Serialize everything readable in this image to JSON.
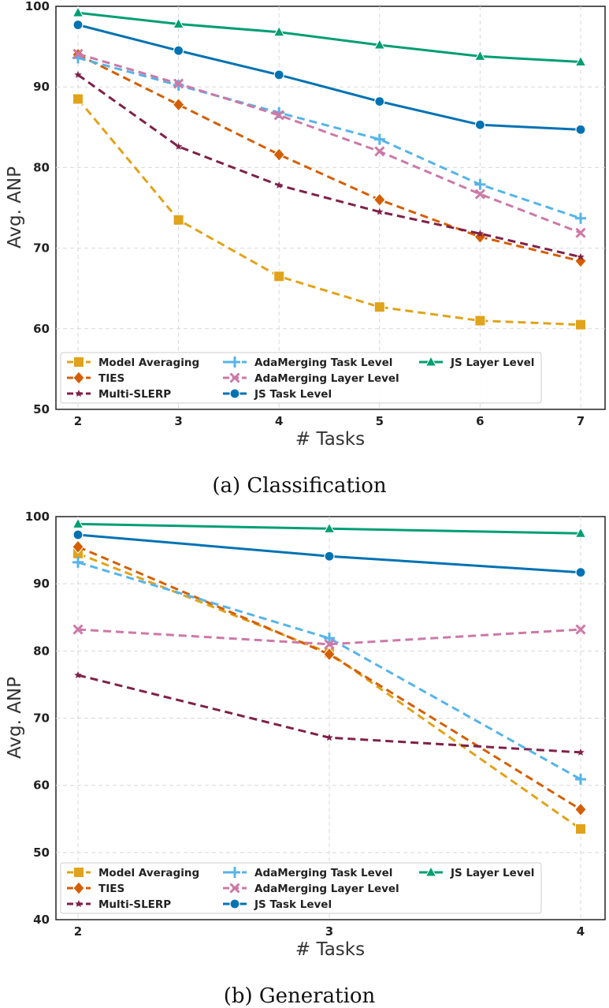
{
  "colors": {
    "model_averaging": "#e0a31a",
    "ties": "#d55e00",
    "multi_slerp": "#7f2148",
    "adamerging_task": "#56b4e9",
    "adamerging_layer": "#cc79a7",
    "js_task": "#0072b2",
    "js_layer": "#009e73"
  },
  "chart_data": [
    {
      "type": "line",
      "caption": "(a) Classification",
      "xlabel": "# Tasks",
      "ylabel": "Avg. ANP",
      "x": [
        2,
        3,
        4,
        5,
        6,
        7
      ],
      "x_tick_labels": [
        "2",
        "3",
        "4",
        "5",
        "6",
        "7"
      ],
      "ylim": [
        50,
        100
      ],
      "y_ticks": [
        50,
        60,
        70,
        80,
        90,
        100
      ],
      "y_tick_labels": [
        "50",
        "60",
        "70",
        "80",
        "90",
        "100"
      ],
      "grid": true,
      "legend_position": "lower-left",
      "series": [
        {
          "key": "model_averaging",
          "name": "Model Averaging",
          "marker": "square",
          "dashed": true,
          "values": [
            88.5,
            73.5,
            66.5,
            62.7,
            61.0,
            60.5
          ]
        },
        {
          "key": "ties",
          "name": "TIES",
          "marker": "diamond",
          "dashed": true,
          "values": [
            94.0,
            87.8,
            81.6,
            76.0,
            71.4,
            68.4
          ]
        },
        {
          "key": "multi_slerp",
          "name": "Multi-SLERP",
          "marker": "star",
          "dashed": true,
          "values": [
            91.5,
            82.6,
            77.8,
            74.5,
            71.8,
            68.9
          ]
        },
        {
          "key": "adamerging_task",
          "name": "AdaMerging Task Level",
          "marker": "plus",
          "dashed": true,
          "values": [
            93.6,
            90.2,
            86.8,
            83.5,
            77.9,
            73.7
          ]
        },
        {
          "key": "adamerging_layer",
          "name": "AdaMerging Layer Level",
          "marker": "x",
          "dashed": true,
          "values": [
            94.1,
            90.4,
            86.5,
            82.0,
            76.7,
            71.9
          ]
        },
        {
          "key": "js_task",
          "name": "JS Task Level",
          "marker": "circle",
          "dashed": false,
          "values": [
            97.7,
            94.5,
            91.5,
            88.2,
            85.3,
            84.7
          ]
        },
        {
          "key": "js_layer",
          "name": "JS Layer Level",
          "marker": "triangle",
          "dashed": false,
          "values": [
            99.2,
            97.8,
            96.8,
            95.2,
            93.8,
            93.1
          ]
        }
      ]
    },
    {
      "type": "line",
      "caption": "(b) Generation",
      "xlabel": "# Tasks",
      "ylabel": "Avg. ANP",
      "x": [
        2,
        3,
        4
      ],
      "x_tick_labels": [
        "2",
        "3",
        "4"
      ],
      "ylim": [
        40,
        100
      ],
      "y_ticks": [
        40,
        50,
        60,
        70,
        80,
        90,
        100
      ],
      "y_tick_labels": [
        "40",
        "50",
        "60",
        "70",
        "80",
        "90",
        "100"
      ],
      "grid": true,
      "legend_position": "lower-left",
      "series": [
        {
          "key": "model_averaging",
          "name": "Model Averaging",
          "marker": "square",
          "dashed": true,
          "values": [
            94.5,
            79.7,
            53.5
          ]
        },
        {
          "key": "ties",
          "name": "TIES",
          "marker": "diamond",
          "dashed": true,
          "values": [
            95.5,
            79.5,
            56.4
          ]
        },
        {
          "key": "multi_slerp",
          "name": "Multi-SLERP",
          "marker": "star",
          "dashed": true,
          "values": [
            76.4,
            67.1,
            64.9
          ]
        },
        {
          "key": "adamerging_task",
          "name": "AdaMerging Task Level",
          "marker": "plus",
          "dashed": true,
          "values": [
            93.2,
            81.9,
            60.9
          ]
        },
        {
          "key": "adamerging_layer",
          "name": "AdaMerging Layer Level",
          "marker": "x",
          "dashed": true,
          "values": [
            83.2,
            81.0,
            83.2
          ]
        },
        {
          "key": "js_task",
          "name": "JS Task Level",
          "marker": "circle",
          "dashed": false,
          "values": [
            97.3,
            94.1,
            91.7
          ]
        },
        {
          "key": "js_layer",
          "name": "JS Layer Level",
          "marker": "triangle",
          "dashed": false,
          "values": [
            98.9,
            98.2,
            97.5
          ]
        }
      ]
    }
  ]
}
